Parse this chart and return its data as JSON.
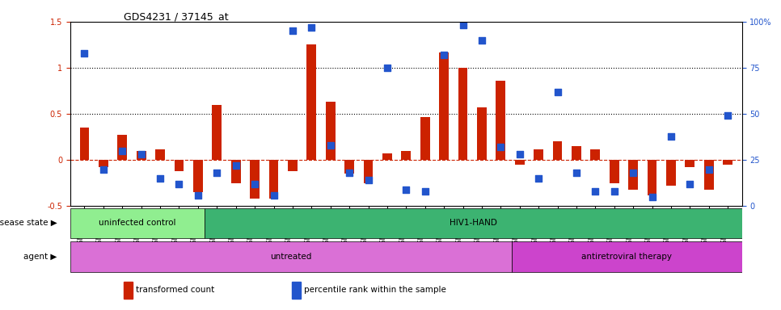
{
  "title": "GDS4231 / 37145_at",
  "samples": [
    "GSM697483",
    "GSM697484",
    "GSM697485",
    "GSM697486",
    "GSM697487",
    "GSM697488",
    "GSM697489",
    "GSM697490",
    "GSM697491",
    "GSM697492",
    "GSM697493",
    "GSM697494",
    "GSM697495",
    "GSM697496",
    "GSM697497",
    "GSM697498",
    "GSM697499",
    "GSM697500",
    "GSM697501",
    "GSM697502",
    "GSM697503",
    "GSM697504",
    "GSM697505",
    "GSM697506",
    "GSM697507",
    "GSM697508",
    "GSM697509",
    "GSM697510",
    "GSM697511",
    "GSM697512",
    "GSM697513",
    "GSM697514",
    "GSM697515",
    "GSM697516",
    "GSM697517"
  ],
  "transformed_count": [
    0.35,
    -0.08,
    0.27,
    0.1,
    0.12,
    -0.12,
    -0.35,
    0.6,
    -0.25,
    -0.42,
    -0.42,
    -0.12,
    1.25,
    0.63,
    -0.15,
    -0.25,
    0.07,
    0.1,
    0.47,
    1.17,
    1.0,
    0.57,
    0.86,
    -0.05,
    0.12,
    0.2,
    0.15,
    0.12,
    -0.25,
    -0.32,
    -0.38,
    -0.28,
    -0.08,
    -0.32,
    -0.05
  ],
  "percentile_rank": [
    83,
    20,
    30,
    28,
    15,
    12,
    6,
    18,
    22,
    12,
    6,
    95,
    97,
    33,
    18,
    14,
    75,
    9,
    8,
    82,
    98,
    90,
    32,
    28,
    15,
    62,
    18,
    8,
    8,
    18,
    5,
    38,
    12,
    20,
    49
  ],
  "bar_color": "#cc2200",
  "dot_color": "#2255cc",
  "ylim_left": [
    -0.5,
    1.5
  ],
  "ylim_right": [
    0,
    100
  ],
  "yticks_left": [
    -0.5,
    0.0,
    0.5,
    1.0,
    1.5
  ],
  "ytick_left_labels": [
    "-0.5",
    "0",
    "0.5",
    "1",
    "1.5"
  ],
  "yticks_right": [
    0,
    25,
    50,
    75,
    100
  ],
  "ytick_right_labels": [
    "0",
    "25",
    "50",
    "75",
    "100%"
  ],
  "hlines": [
    0.5,
    1.0
  ],
  "disease_state_groups": [
    {
      "label": "uninfected control",
      "start": 0,
      "end": 7,
      "color": "#90ee90"
    },
    {
      "label": "HIV1-HAND",
      "start": 7,
      "end": 35,
      "color": "#3cb371"
    }
  ],
  "agent_groups": [
    {
      "label": "untreated",
      "start": 0,
      "end": 23,
      "color": "#da70d6"
    },
    {
      "label": "antiretroviral therapy",
      "start": 23,
      "end": 35,
      "color": "#cc44cc"
    }
  ],
  "legend_items": [
    {
      "color": "#cc2200",
      "label": "transformed count"
    },
    {
      "color": "#2255cc",
      "label": "percentile rank within the sample"
    }
  ],
  "arrow_char": "▶"
}
